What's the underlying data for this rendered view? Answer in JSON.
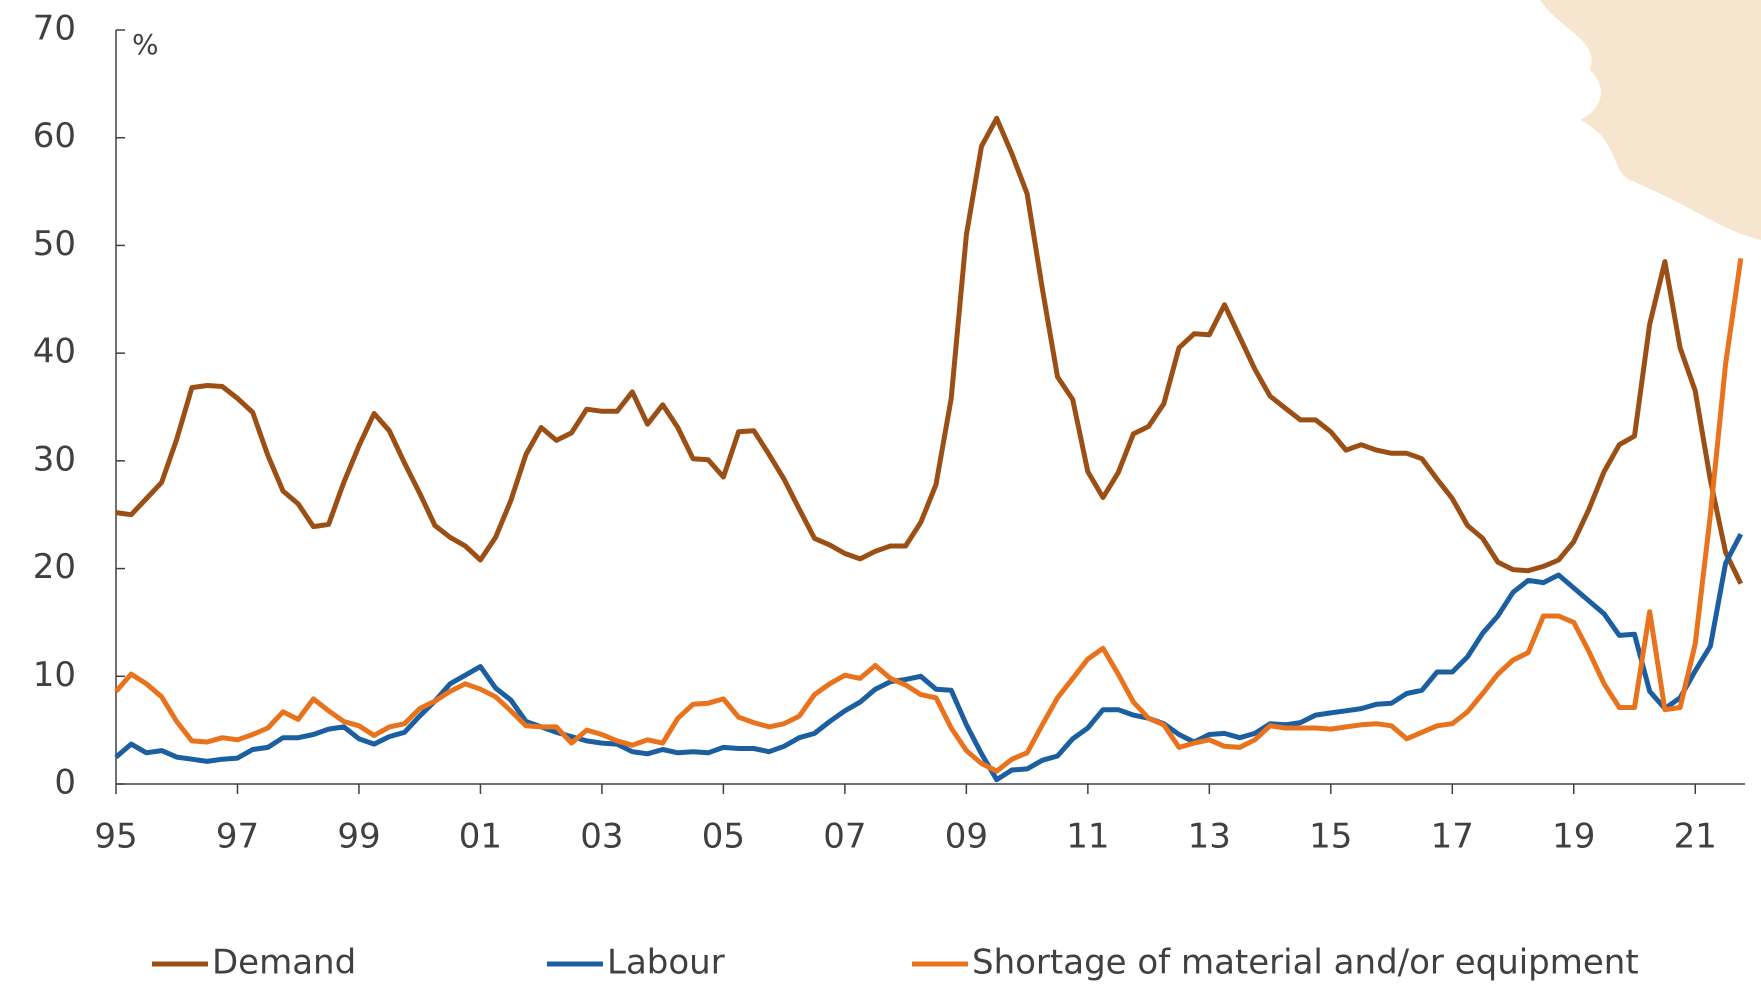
{
  "chart_data": {
    "type": "line",
    "y_label": "%",
    "x": [
      1995,
      1995.25,
      1995.5,
      1995.75,
      1996,
      1996.25,
      1996.5,
      1996.75,
      1997,
      1997.25,
      1997.5,
      1997.75,
      1998,
      1998.25,
      1998.5,
      1998.75,
      1999,
      1999.25,
      1999.5,
      1999.75,
      2000,
      2000.25,
      2000.5,
      2000.75,
      2001,
      2001.25,
      2001.5,
      2001.75,
      2002,
      2002.25,
      2002.5,
      2002.75,
      2003,
      2003.25,
      2003.5,
      2003.75,
      2004,
      2004.25,
      2004.5,
      2004.75,
      2005,
      2005.25,
      2005.5,
      2005.75,
      2006,
      2006.25,
      2006.5,
      2006.75,
      2007,
      2007.25,
      2007.5,
      2007.75,
      2008,
      2008.25,
      2008.5,
      2008.75,
      2009,
      2009.25,
      2009.5,
      2009.75,
      2010,
      2010.25,
      2010.5,
      2010.75,
      2011,
      2011.25,
      2011.5,
      2011.75,
      2012,
      2012.25,
      2012.5,
      2012.75,
      2013,
      2013.25,
      2013.5,
      2013.75,
      2014,
      2014.25,
      2014.5,
      2014.75,
      2015,
      2015.25,
      2015.5,
      2015.75,
      2016,
      2016.25,
      2016.5,
      2016.75,
      2017,
      2017.25,
      2017.5,
      2017.75,
      2018,
      2018.25,
      2018.5,
      2018.75,
      2019,
      2019.25,
      2019.5,
      2019.75,
      2020,
      2020.25,
      2020.5,
      2020.75,
      2021,
      2021.25,
      2021.5,
      2021.75
    ],
    "series": [
      {
        "name": "Demand",
        "color": "#9c4f15",
        "values": [
          25.2,
          25.0,
          26.5,
          28.0,
          32,
          36.8,
          37,
          36.9,
          35.8,
          34.5,
          30.5,
          27.2,
          26,
          23.9,
          24.1,
          28,
          31.4,
          34.4,
          32.8,
          29.8,
          27,
          24,
          22.9,
          22.1,
          20.8,
          22.9,
          26.3,
          30.6,
          33.1,
          31.9,
          32.6,
          34.8,
          34.6,
          34.6,
          36.4,
          33.4,
          35.2,
          33.1,
          30.2,
          30.1,
          28.5,
          32.7,
          32.8,
          30.6,
          28.3,
          25.5,
          22.8,
          22.2,
          21.4,
          20.9,
          21.6,
          22.1,
          22.1,
          24.3,
          27.8,
          35.8,
          51,
          59.2,
          61.8,
          58.5,
          54.8,
          46,
          37.8,
          35.7,
          29,
          26.6,
          28.9,
          32.5,
          33.2,
          35.3,
          40.5,
          41.8,
          41.7,
          44.5,
          41.5,
          38.5,
          36,
          34.9,
          33.8,
          33.8,
          32.7,
          31,
          31.5,
          31,
          30.7,
          30.7,
          30.2,
          28.3,
          26.5,
          24,
          22.8,
          20.6,
          19.9,
          19.8,
          20.2,
          20.8,
          22.5,
          25.5,
          29,
          31.5,
          32.3,
          42.7,
          48.5,
          40.5,
          36.5,
          28.2,
          21.5,
          18.6
        ]
      },
      {
        "name": "Labour",
        "color": "#1c5fa0",
        "values": [
          2.5,
          3.7,
          2.9,
          3.1,
          2.5,
          2.3,
          2.1,
          2.3,
          2.4,
          3.2,
          3.4,
          4.3,
          4.3,
          4.6,
          5.1,
          5.3,
          4.2,
          3.7,
          4.4,
          4.8,
          6.3,
          7.7,
          9.3,
          10.1,
          10.9,
          8.9,
          7.8,
          5.8,
          5.3,
          4.8,
          4.4,
          4.0,
          3.8,
          3.7,
          3.0,
          2.8,
          3.2,
          2.9,
          3.0,
          2.9,
          3.4,
          3.3,
          3.3,
          3.0,
          3.5,
          4.3,
          4.7,
          5.8,
          6.8,
          7.6,
          8.8,
          9.5,
          9.7,
          10.0,
          8.8,
          8.7,
          5.5,
          2.8,
          0.4,
          1.3,
          1.4,
          2.2,
          2.6,
          4.2,
          5.2,
          6.9,
          6.9,
          6.4,
          6.1,
          5.6,
          4.6,
          3.9,
          4.6,
          4.7,
          4.3,
          4.7,
          5.6,
          5.5,
          5.7,
          6.4,
          6.6,
          6.8,
          7.0,
          7.4,
          7.5,
          8.4,
          8.7,
          10.4,
          10.4,
          11.8,
          14,
          15.6,
          17.8,
          18.9,
          18.7,
          19.4,
          18.2,
          17,
          15.8,
          13.8,
          13.9,
          8.6,
          7.0,
          8.0,
          10.5,
          12.8,
          20.5,
          23.2
        ]
      },
      {
        "name": "Shortage of material and/or equipment",
        "color": "#e8731c",
        "values": [
          8.6,
          10.2,
          9.3,
          8.1,
          5.8,
          4.0,
          3.9,
          4.3,
          4.1,
          4.6,
          5.2,
          6.7,
          6.0,
          7.9,
          6.8,
          5.8,
          5.4,
          4.5,
          5.3,
          5.6,
          7.0,
          7.7,
          8.6,
          9.3,
          8.8,
          8.1,
          6.8,
          5.4,
          5.3,
          5.3,
          3.8,
          5.0,
          4.6,
          4.0,
          3.6,
          4.1,
          3.8,
          6.1,
          7.4,
          7.5,
          7.9,
          6.2,
          5.7,
          5.3,
          5.6,
          6.3,
          8.3,
          9.3,
          10.1,
          9.8,
          11.0,
          9.8,
          9.2,
          8.3,
          8.0,
          5.2,
          3.1,
          1.9,
          1.2,
          2.3,
          2.9,
          5.5,
          8.0,
          9.8,
          11.6,
          12.6,
          10.2,
          7.6,
          6.1,
          5.5,
          3.4,
          3.8,
          4.1,
          3.5,
          3.4,
          4.1,
          5.4,
          5.2,
          5.2,
          5.2,
          5.1,
          5.3,
          5.5,
          5.6,
          5.4,
          4.2,
          4.8,
          5.4,
          5.6,
          6.7,
          8.4,
          10.2,
          11.5,
          12.2,
          15.6,
          15.6,
          15.0,
          12.3,
          9.3,
          7.1,
          7.1,
          16.0,
          6.9,
          7.1,
          13.0,
          25.0,
          39.0,
          48.8
        ]
      }
    ],
    "xlim": [
      1995,
      2021.8
    ],
    "ylim": [
      0,
      70
    ],
    "xticks": [
      {
        "value": 1995,
        "label": "95"
      },
      {
        "value": 1997,
        "label": "97"
      },
      {
        "value": 1999,
        "label": "99"
      },
      {
        "value": 2001,
        "label": "01"
      },
      {
        "value": 2003,
        "label": "03"
      },
      {
        "value": 2005,
        "label": "05"
      },
      {
        "value": 2007,
        "label": "07"
      },
      {
        "value": 2009,
        "label": "09"
      },
      {
        "value": 2011,
        "label": "11"
      },
      {
        "value": 2013,
        "label": "13"
      },
      {
        "value": 2015,
        "label": "15"
      },
      {
        "value": 2017,
        "label": "17"
      },
      {
        "value": 2019,
        "label": "19"
      },
      {
        "value": 2021,
        "label": "21"
      }
    ],
    "yticks": [
      0,
      10,
      20,
      30,
      40,
      50,
      60,
      70
    ],
    "grid": false,
    "legend": "bottom"
  }
}
